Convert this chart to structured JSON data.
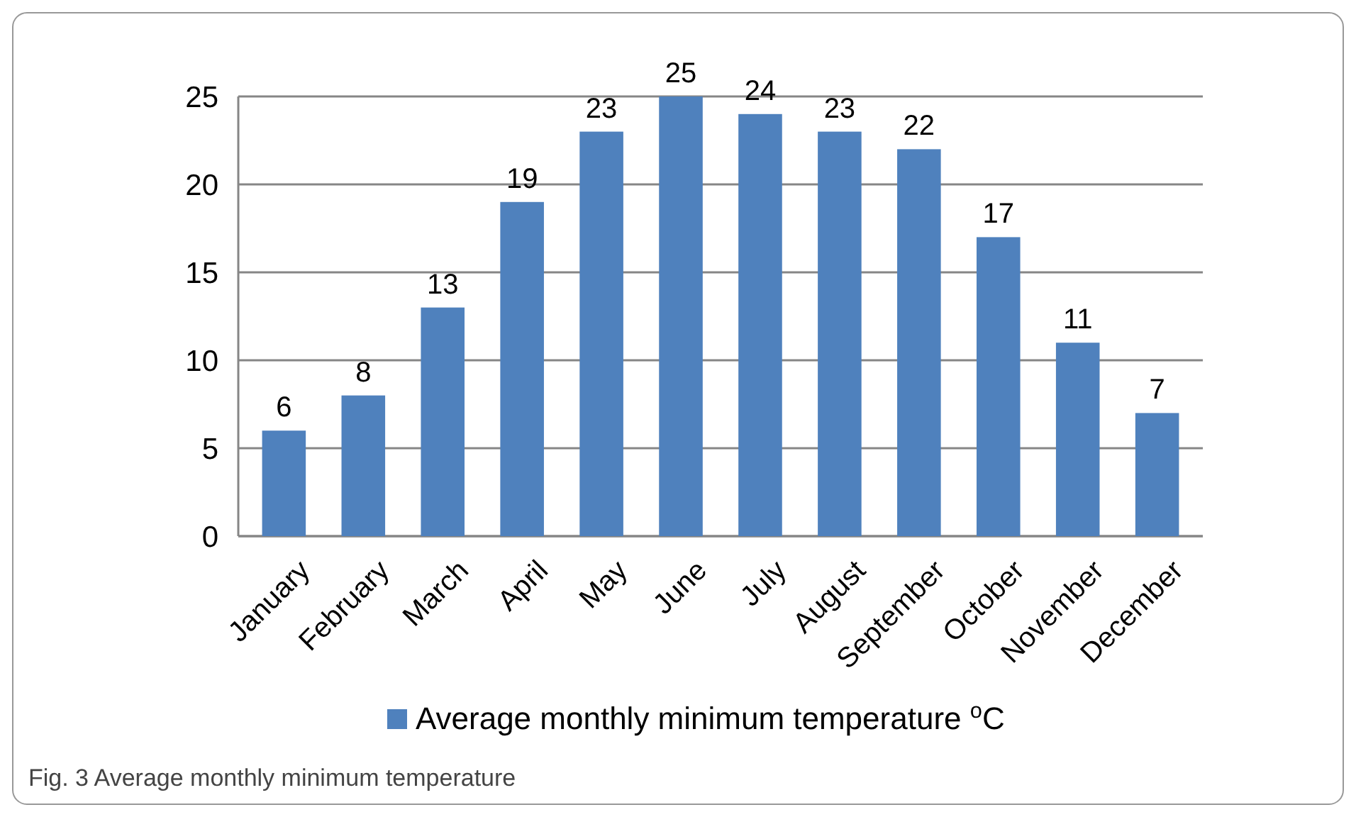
{
  "chart_data": {
    "type": "bar",
    "categories": [
      "January",
      "February",
      "March",
      "April",
      "May",
      "June",
      "July",
      "August",
      "September",
      "October",
      "November",
      "December"
    ],
    "series": [
      {
        "name": "Average monthly minimum temperature  $^{o}$C",
        "color": "#4f81bd",
        "values": [
          6,
          8,
          13,
          19,
          23,
          25,
          24,
          23,
          22,
          17,
          11,
          7
        ]
      }
    ],
    "ylim": [
      0,
      25
    ],
    "yticks": [
      0,
      5,
      10,
      15,
      20,
      25
    ],
    "grid": "y",
    "data_labels": true,
    "legend": "bottom",
    "annotations": [
      "Fig. 3 Average monthly minimum temperature"
    ]
  }
}
